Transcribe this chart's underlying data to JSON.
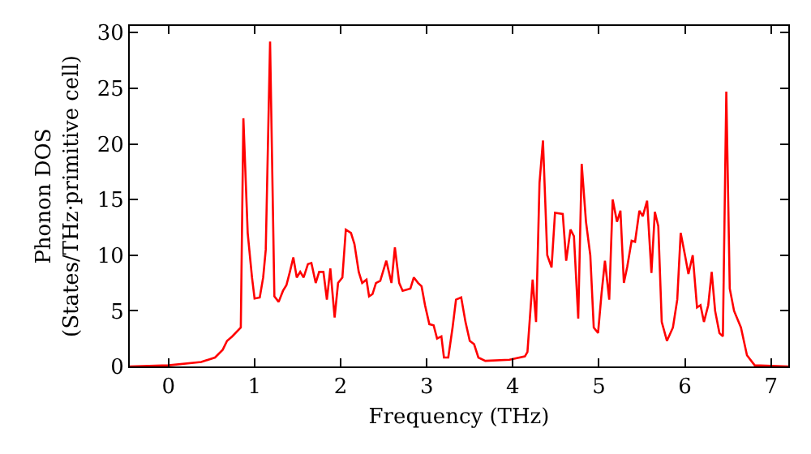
{
  "chart_data": {
    "type": "line",
    "xlabel": "Frequency (THz)",
    "ylabel": "Phonon DOS\n(States/THz·primitive cell)",
    "xlim": [
      -0.45,
      7.2
    ],
    "ylim": [
      0,
      30.6
    ],
    "xticks": [
      0,
      1,
      2,
      3,
      4,
      5,
      6,
      7
    ],
    "yticks": [
      0,
      5,
      10,
      15,
      20,
      25,
      30
    ],
    "marker": "none",
    "line_style": "solid",
    "series": [
      {
        "color": "#ff0000",
        "x": [
          -0.45,
          0.0,
          0.38,
          0.54,
          0.63,
          0.68,
          0.74,
          0.84,
          0.87,
          0.92,
          0.97,
          1.0,
          1.06,
          1.1,
          1.13,
          1.18,
          1.23,
          1.28,
          1.33,
          1.37,
          1.41,
          1.45,
          1.49,
          1.53,
          1.57,
          1.62,
          1.66,
          1.71,
          1.75,
          1.8,
          1.84,
          1.88,
          1.93,
          1.97,
          2.02,
          2.06,
          2.12,
          2.16,
          2.21,
          2.25,
          2.3,
          2.33,
          2.37,
          2.41,
          2.46,
          2.53,
          2.59,
          2.63,
          2.68,
          2.72,
          2.81,
          2.85,
          2.9,
          2.94,
          2.98,
          3.03,
          3.08,
          3.12,
          3.17,
          3.2,
          3.25,
          3.3,
          3.34,
          3.4,
          3.45,
          3.5,
          3.55,
          3.6,
          3.68,
          3.96,
          4.14,
          4.17,
          4.23,
          4.27,
          4.31,
          4.35,
          4.4,
          4.45,
          4.49,
          4.58,
          4.62,
          4.67,
          4.71,
          4.76,
          4.8,
          4.85,
          4.9,
          4.94,
          4.99,
          5.03,
          5.07,
          5.12,
          5.16,
          5.21,
          5.25,
          5.29,
          5.33,
          5.38,
          5.42,
          5.47,
          5.51,
          5.56,
          5.61,
          5.65,
          5.69,
          5.73,
          5.79,
          5.86,
          5.91,
          5.95,
          6.0,
          6.04,
          6.09,
          6.14,
          6.18,
          6.22,
          6.27,
          6.31,
          6.35,
          6.4,
          6.44,
          6.48,
          6.52,
          6.57,
          6.65,
          6.72,
          6.81,
          7.2
        ],
        "values": [
          0,
          0.1,
          0.4,
          0.8,
          1.5,
          2.3,
          2.7,
          3.5,
          22.3,
          12,
          8,
          6.1,
          6.2,
          8,
          10.5,
          29.2,
          6.3,
          5.8,
          6.8,
          7.3,
          8.5,
          9.8,
          8,
          8.5,
          8,
          9.2,
          9.3,
          7.5,
          8.5,
          8.5,
          6,
          8.8,
          4.4,
          7.5,
          8,
          12.3,
          12,
          11,
          8.5,
          7.5,
          7.8,
          6.3,
          6.5,
          7.5,
          7.7,
          9.5,
          7.5,
          10.7,
          7.5,
          6.8,
          7,
          8,
          7.5,
          7.2,
          5.5,
          3.8,
          3.7,
          2.5,
          2.7,
          0.8,
          0.8,
          3.5,
          6,
          6.2,
          4,
          2.3,
          2,
          0.8,
          0.5,
          0.6,
          0.9,
          1.3,
          7.8,
          4,
          16.5,
          20.3,
          10,
          8.9,
          13.8,
          13.7,
          9.5,
          12.3,
          11.7,
          4.3,
          18.2,
          13,
          10,
          3.5,
          3,
          6.5,
          9.5,
          6,
          15,
          13,
          14,
          7.5,
          9,
          11.3,
          11.2,
          14,
          13.5,
          14.9,
          8.4,
          13.9,
          12.6,
          4,
          2.3,
          3.5,
          6,
          12,
          10,
          8.3,
          10,
          5.3,
          5.5,
          4,
          5.5,
          8.5,
          5,
          3,
          2.7,
          24.7,
          7,
          5,
          3.5,
          1,
          0.1,
          0
        ]
      }
    ]
  }
}
